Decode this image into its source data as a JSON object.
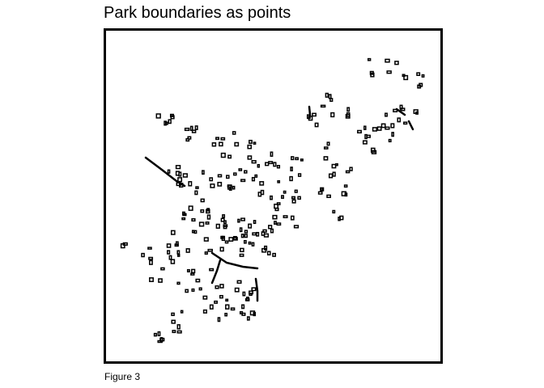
{
  "figure": {
    "title": "Park boundaries as points",
    "caption": "Figure 3"
  },
  "colors": {
    "background": "#ffffff",
    "marks": "#000000"
  }
}
